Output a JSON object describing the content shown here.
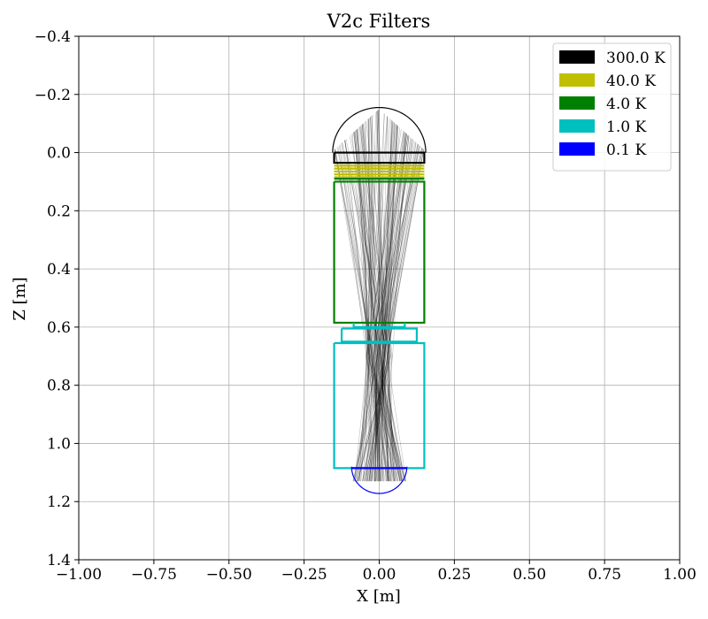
{
  "chart_data": {
    "type": "line",
    "title": "V2c Filters",
    "xlabel": "X [m]",
    "ylabel": "Z [m]",
    "xlim": [
      -1.0,
      1.0
    ],
    "ylim": [
      1.4,
      -0.4
    ],
    "y_inverted": true,
    "grid": true,
    "legend_placement": "top-right",
    "x_ticks": [
      "−1.00",
      "−0.75",
      "−0.50",
      "−0.25",
      "0.00",
      "0.25",
      "0.50",
      "0.75",
      "1.00"
    ],
    "x_tick_values": [
      -1.0,
      -0.75,
      -0.5,
      -0.25,
      0.0,
      0.25,
      0.5,
      0.75,
      1.0
    ],
    "y_ticks": [
      "−0.4",
      "−0.2",
      "0.0",
      "0.2",
      "0.4",
      "0.6",
      "0.8",
      "1.0",
      "1.2",
      "1.4"
    ],
    "y_tick_values": [
      -0.4,
      -0.2,
      0.0,
      0.2,
      0.4,
      0.6,
      0.8,
      1.0,
      1.2,
      1.4
    ],
    "series": [
      {
        "name": "300.0 K",
        "color": "#000000",
        "lines": [
          {
            "x": [
              -0.15,
              0.15,
              0.15,
              -0.15,
              -0.15
            ],
            "y": [
              0.0,
              0.0,
              0.035,
              0.035,
              0.0
            ]
          }
        ]
      },
      {
        "name": "40.0 K",
        "color": "#bfbf00",
        "lines": [
          {
            "x": [
              -0.15,
              0.15
            ],
            "y": [
              0.045,
              0.045
            ]
          },
          {
            "x": [
              -0.15,
              0.15
            ],
            "y": [
              0.055,
              0.055
            ]
          },
          {
            "x": [
              -0.15,
              0.15
            ],
            "y": [
              0.065,
              0.065
            ]
          },
          {
            "x": [
              -0.15,
              0.15
            ],
            "y": [
              0.075,
              0.075
            ]
          },
          {
            "x": [
              -0.15,
              0.15
            ],
            "y": [
              0.085,
              0.085
            ]
          }
        ]
      },
      {
        "name": "4.0 K",
        "color": "#008000",
        "lines": [
          {
            "x": [
              -0.15,
              0.15
            ],
            "y": [
              0.09,
              0.09
            ]
          },
          {
            "x": [
              -0.15,
              0.15,
              0.15,
              -0.15,
              -0.15
            ],
            "y": [
              0.1,
              0.1,
              0.585,
              0.585,
              0.1
            ]
          }
        ]
      },
      {
        "name": "1.0 K",
        "color": "#00bfbf",
        "lines": [
          {
            "x": [
              -0.085,
              -0.085,
              0.085,
              0.085
            ],
            "y": [
              0.585,
              0.6,
              0.6,
              0.585
            ]
          },
          {
            "x": [
              -0.125,
              0.125,
              0.125,
              -0.125,
              -0.125
            ],
            "y": [
              0.605,
              0.605,
              0.65,
              0.65,
              0.605
            ]
          },
          {
            "x": [
              -0.15,
              0.15,
              0.15,
              -0.15,
              -0.15
            ],
            "y": [
              0.655,
              0.655,
              1.085,
              1.085,
              0.655
            ]
          }
        ]
      },
      {
        "name": "0.1 K",
        "color": "#0000ff",
        "lines": [
          {
            "x": [
              -0.09,
              0.09
            ],
            "y": [
              1.085,
              1.085
            ]
          }
        ]
      }
    ],
    "arcs": [
      {
        "color": "#000000",
        "cx": 0.0,
        "cz": 0.0,
        "r": 0.155,
        "direction": "up"
      },
      {
        "color": "#0000ff",
        "cx": 0.0,
        "cz": 1.08,
        "r": 0.092,
        "direction": "down"
      }
    ],
    "rays": {
      "color": "#000000",
      "opacity": 0.25,
      "count": 140,
      "z_start": -0.15,
      "z_focus": 0.7,
      "z_end": 1.13,
      "x_half_width_start": 0.15,
      "x_half_width_focus": 0.045,
      "x_half_width_end": 0.09
    }
  }
}
